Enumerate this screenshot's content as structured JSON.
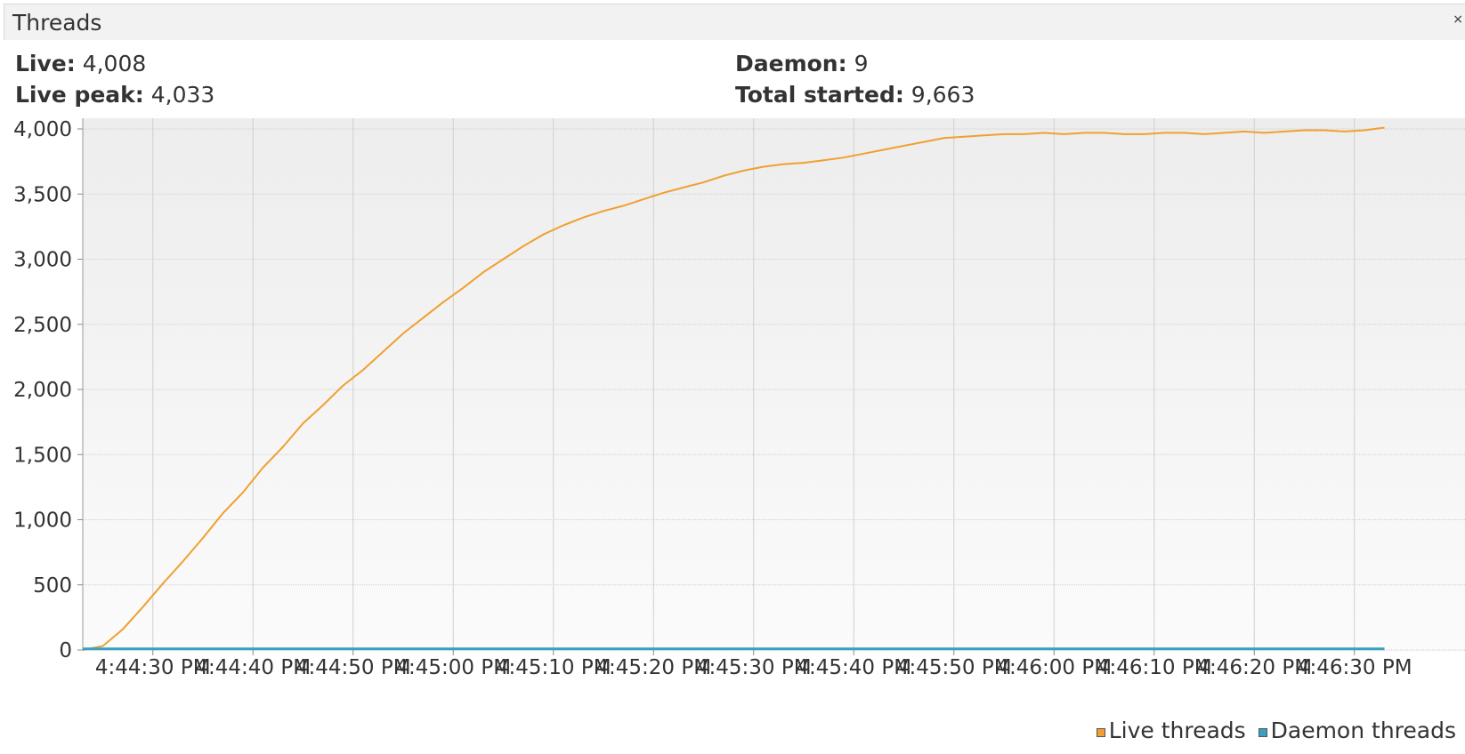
{
  "panel": {
    "title": "Threads",
    "close_glyph": "×"
  },
  "stats": {
    "live": {
      "label": "Live:",
      "value": "4,008"
    },
    "live_peak": {
      "label": "Live peak:",
      "value": "4,033"
    },
    "daemon": {
      "label": "Daemon:",
      "value": "9"
    },
    "total_started": {
      "label": "Total started:",
      "value": "9,663"
    }
  },
  "colors": {
    "live": "#f0a030",
    "daemon": "#3aa0c0"
  },
  "chart_data": {
    "type": "line",
    "ylim": [
      0,
      4000
    ],
    "yticks": [
      0,
      500,
      1000,
      1500,
      2000,
      2500,
      3000,
      3500,
      4000
    ],
    "ytick_labels": [
      "0",
      "500",
      "1,000",
      "1,500",
      "2,000",
      "2,500",
      "3,000",
      "3,500",
      "4,000"
    ],
    "xlim": [
      "4:44:23 PM",
      "4:46:33 PM"
    ],
    "xtick_labels": [
      "4:44:30 PM",
      "4:44:40 PM",
      "4:44:50 PM",
      "4:45:00 PM",
      "4:45:10 PM",
      "4:45:20 PM",
      "4:45:30 PM",
      "4:45:40 PM",
      "4:45:50 PM",
      "4:46:00 PM",
      "4:46:10 PM",
      "4:46:20 PM",
      "4:46:30 PM"
    ],
    "xtick_times": [
      "4:44:30 PM",
      "4:44:40 PM",
      "4:44:50 PM",
      "4:45:00 PM",
      "4:45:10 PM",
      "4:45:20 PM",
      "4:45:30 PM",
      "4:45:40 PM",
      "4:45:50 PM",
      "4:46:00 PM",
      "4:46:10 PM",
      "4:46:20 PM",
      "4:46:30 PM"
    ],
    "grid": true,
    "legend": "bottom-right",
    "series": [
      {
        "name": "Live threads",
        "x": [
          "4:44:23 PM",
          "4:44:25 PM",
          "4:44:27 PM",
          "4:44:29 PM",
          "4:44:31 PM",
          "4:44:33 PM",
          "4:44:35 PM",
          "4:44:37 PM",
          "4:44:39 PM",
          "4:44:41 PM",
          "4:44:43 PM",
          "4:44:45 PM",
          "4:44:47 PM",
          "4:44:49 PM",
          "4:44:51 PM",
          "4:44:53 PM",
          "4:44:55 PM",
          "4:44:57 PM",
          "4:44:59 PM",
          "4:45:01 PM",
          "4:45:03 PM",
          "4:45:05 PM",
          "4:45:07 PM",
          "4:45:09 PM",
          "4:45:11 PM",
          "4:45:13 PM",
          "4:45:15 PM",
          "4:45:17 PM",
          "4:45:19 PM",
          "4:45:21 PM",
          "4:45:23 PM",
          "4:45:25 PM",
          "4:45:27 PM",
          "4:45:29 PM",
          "4:45:31 PM",
          "4:45:33 PM",
          "4:45:35 PM",
          "4:45:37 PM",
          "4:45:39 PM",
          "4:45:41 PM",
          "4:45:43 PM",
          "4:45:45 PM",
          "4:45:47 PM",
          "4:45:49 PM",
          "4:45:51 PM",
          "4:45:53 PM",
          "4:45:55 PM",
          "4:45:57 PM",
          "4:45:59 PM",
          "4:46:01 PM",
          "4:46:03 PM",
          "4:46:05 PM",
          "4:46:07 PM",
          "4:46:09 PM",
          "4:46:11 PM",
          "4:46:13 PM",
          "4:46:15 PM",
          "4:46:17 PM",
          "4:46:19 PM",
          "4:46:21 PM",
          "4:46:23 PM",
          "4:46:25 PM",
          "4:46:27 PM",
          "4:46:29 PM",
          "4:46:31 PM",
          "4:46:33 PM"
        ],
        "values": [
          0,
          30,
          160,
          330,
          510,
          680,
          860,
          1050,
          1210,
          1400,
          1560,
          1740,
          1880,
          2030,
          2150,
          2290,
          2430,
          2550,
          2670,
          2780,
          2900,
          3000,
          3100,
          3190,
          3260,
          3320,
          3370,
          3410,
          3460,
          3510,
          3550,
          3590,
          3640,
          3680,
          3710,
          3730,
          3740,
          3760,
          3780,
          3810,
          3840,
          3870,
          3900,
          3930,
          3940,
          3950,
          3960,
          3960,
          3970,
          3960,
          3970,
          3970,
          3960,
          3960,
          3970,
          3970,
          3960,
          3970,
          3980,
          3970,
          3980,
          3990,
          3990,
          3980,
          3990,
          4010
        ]
      },
      {
        "name": "Daemon threads",
        "x": [
          "4:44:23 PM",
          "4:46:33 PM"
        ],
        "values": [
          9,
          9
        ]
      }
    ]
  }
}
